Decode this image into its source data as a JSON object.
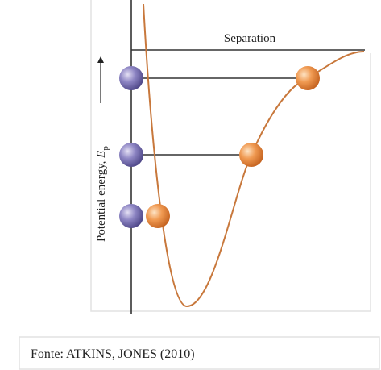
{
  "diagram": {
    "x_axis_label": "Separation",
    "y_axis_label": {
      "text": "Potential energy, ",
      "symbol": "E",
      "subscript": "p"
    }
  },
  "caption": "Fonte: ATKINS, JONES (2010)"
}
